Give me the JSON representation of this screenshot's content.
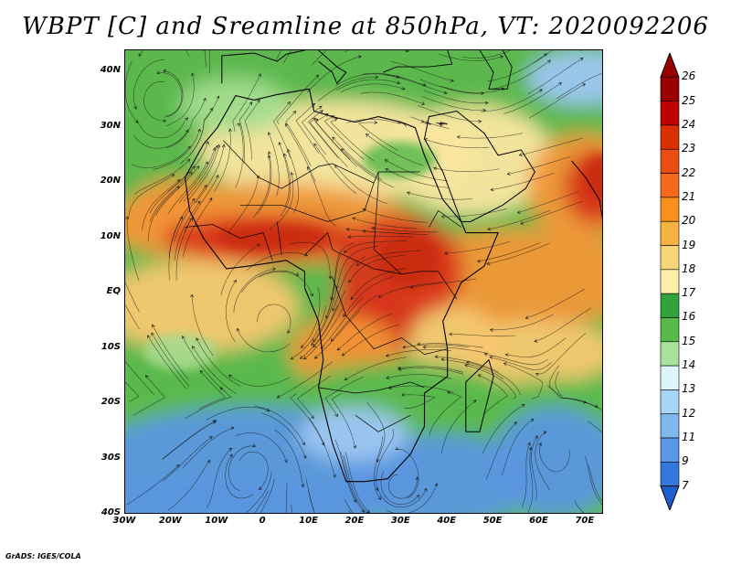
{
  "title": "WBPT [C] and Sreamline at 850hPa, VT: 2020092206",
  "credit": "GrADS: IGES/COLA",
  "lat_labels": [
    "40N",
    "30N",
    "20N",
    "10N",
    "EQ",
    "10S",
    "20S",
    "30S",
    "40S"
  ],
  "lon_labels": [
    "30W",
    "20W",
    "10W",
    "0",
    "10E",
    "20E",
    "30E",
    "40E",
    "50E",
    "60E",
    "70E"
  ],
  "colorbar": {
    "labels": [
      "26",
      "25",
      "24",
      "23",
      "22",
      "21",
      "20",
      "19",
      "18",
      "17",
      "16",
      "15",
      "14",
      "13",
      "12",
      "11",
      "9",
      "7"
    ],
    "colors": [
      "#9b0000",
      "#c00000",
      "#dc2f02",
      "#eb4d10",
      "#f46a1a",
      "#f98f1d",
      "#f6b13e",
      "#f7d678",
      "#fcefa8",
      "#31a23a",
      "#57bb4a",
      "#a9e29c",
      "#dff5fd",
      "#a9d5f6",
      "#7db8ef",
      "#5898e6",
      "#3377dc",
      "#1d5fd3"
    ]
  },
  "map": {
    "lat_range": [
      -40,
      44
    ],
    "lon_range": [
      -30,
      74
    ],
    "variable": "WBPT",
    "units": "C",
    "level": "850hPa",
    "colors": {
      "hot": "#d8361a",
      "warm": "#f29637",
      "mild": "#f7c770",
      "pale": "#fbe6a0",
      "green": "#5bb84e",
      "lightgreen": "#a4dc8e",
      "cold": "#5b96e0",
      "coldlight": "#9ec6f2"
    }
  }
}
